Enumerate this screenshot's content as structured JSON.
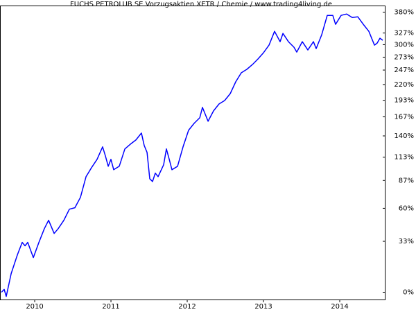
{
  "chart_data": {
    "type": "line",
    "title": "FUCHS PETROLUB SE Vorzugsaktien XETR / Chemie / www.trading4living.de",
    "yscale": "log",
    "x": [
      2009.564,
      2009.6,
      2009.627,
      2009.691,
      2009.773,
      2009.836,
      2009.873,
      2009.909,
      2009.982,
      2010.055,
      2010.127,
      2010.182,
      2010.255,
      2010.309,
      2010.382,
      2010.455,
      2010.527,
      2010.6,
      2010.673,
      2010.745,
      2010.818,
      2010.891,
      2010.927,
      2010.964,
      2011.0,
      2011.036,
      2011.109,
      2011.182,
      2011.255,
      2011.327,
      2011.4,
      2011.436,
      2011.473,
      2011.509,
      2011.545,
      2011.582,
      2011.618,
      2011.691,
      2011.727,
      2011.764,
      2011.8,
      2011.873,
      2011.945,
      2012.018,
      2012.091,
      2012.164,
      2012.2,
      2012.273,
      2012.345,
      2012.418,
      2012.491,
      2012.564,
      2012.636,
      2012.709,
      2012.782,
      2012.855,
      2012.927,
      2013.0,
      2013.073,
      2013.145,
      2013.218,
      2013.255,
      2013.327,
      2013.4,
      2013.436,
      2013.509,
      2013.582,
      2013.655,
      2013.691,
      2013.764,
      2013.836,
      2013.909,
      2013.945,
      2014.018,
      2014.091,
      2014.164,
      2014.236,
      2014.309,
      2014.382,
      2014.455,
      2014.491,
      2014.527,
      2014.564
    ],
    "series": [
      {
        "color": "#0000ff",
        "values": [
          0,
          1.6,
          -2.3,
          11.0,
          23.3,
          32.2,
          29.7,
          32.2,
          21.4,
          32.2,
          42.8,
          49.6,
          39.0,
          42.8,
          49.6,
          59.2,
          60.5,
          70.1,
          91.0,
          100.9,
          110.5,
          125.7,
          114.6,
          102.5,
          110.5,
          98.6,
          102.5,
          123.1,
          129.2,
          134.6,
          143.9,
          127.4,
          118.8,
          88.8,
          85.9,
          94.8,
          91.0,
          104.1,
          123.1,
          110.5,
          98.6,
          102.5,
          125.7,
          147.7,
          157.5,
          165.6,
          181.5,
          160.5,
          176.1,
          187.0,
          192.6,
          204.2,
          224.9,
          241.7,
          248.4,
          257.9,
          269.2,
          282.3,
          299.0,
          331.1,
          306.8,
          326.1,
          306.8,
          294.4,
          283.8,
          306.8,
          288.3,
          306.8,
          291.3,
          322.9,
          371.3,
          371.3,
          348.2,
          371.3,
          375.0,
          365.9,
          367.7,
          348.2,
          331.1,
          299.0,
          303.6,
          314.8,
          309.9
        ]
      }
    ],
    "xlim": [
      2009.545,
      2014.6
    ],
    "xticks": [
      2010,
      2011,
      2012,
      2013,
      2014
    ],
    "ylim": [
      -4,
      398
    ],
    "yticks": [
      {
        "value": 0,
        "label": "0%"
      },
      {
        "value": 33,
        "label": "33%"
      },
      {
        "value": 60,
        "label": "60%"
      },
      {
        "value": 87,
        "label": "87%"
      },
      {
        "value": 113,
        "label": "113%"
      },
      {
        "value": 140,
        "label": "140%"
      },
      {
        "value": 167,
        "label": "167%"
      },
      {
        "value": 193,
        "label": "193%"
      },
      {
        "value": 220,
        "label": "220%"
      },
      {
        "value": 247,
        "label": "247%"
      },
      {
        "value": 273,
        "label": "273%"
      },
      {
        "value": 300,
        "label": "300%"
      },
      {
        "value": 327,
        "label": "327%"
      },
      {
        "value": 380,
        "label": "380%"
      }
    ]
  }
}
